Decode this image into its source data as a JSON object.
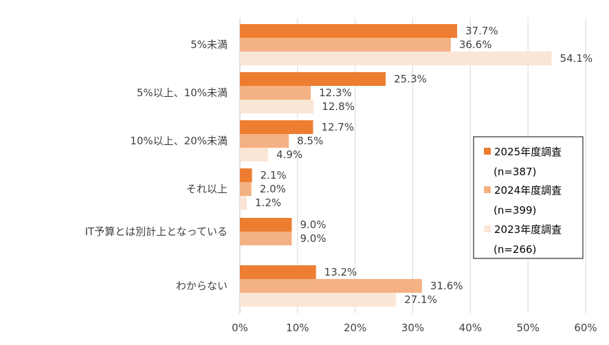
{
  "chart_data": {
    "type": "bar",
    "orientation": "horizontal",
    "categories": [
      "5%未満",
      "5%以上、10%未満",
      "10%以上、20%未満",
      "それ以上",
      "IT予算とは別計上となっている",
      "わからない"
    ],
    "series": [
      {
        "name": "2025年度調査",
        "sample": "(n=387)",
        "color": "#ED7D31",
        "values": [
          37.7,
          25.3,
          12.7,
          2.1,
          9.0,
          13.2
        ],
        "labels": [
          "37.7%",
          "25.3%",
          "12.7%",
          "2.1%",
          "9.0%",
          "13.2%"
        ]
      },
      {
        "name": "2024年度調査",
        "sample": "(n=399)",
        "color": "#F4B183",
        "values": [
          36.6,
          12.3,
          8.5,
          2.0,
          9.0,
          31.6
        ],
        "labels": [
          "36.6%",
          "12.3%",
          "8.5%",
          "2.0%",
          "9.0%",
          "31.6%"
        ]
      },
      {
        "name": "2023年度調査",
        "sample": "(n=266)",
        "color": "#FBE5D6",
        "values": [
          54.1,
          12.8,
          4.9,
          1.2,
          null,
          27.1
        ],
        "labels": [
          "54.1%",
          "12.8%",
          "4.9%",
          "1.2%",
          "",
          "27.1%"
        ]
      }
    ],
    "xlim": [
      0,
      60
    ],
    "xticks": [
      "0%",
      "10%",
      "20%",
      "30%",
      "40%",
      "50%",
      "60%"
    ],
    "grid": true,
    "legend_position": "right"
  }
}
